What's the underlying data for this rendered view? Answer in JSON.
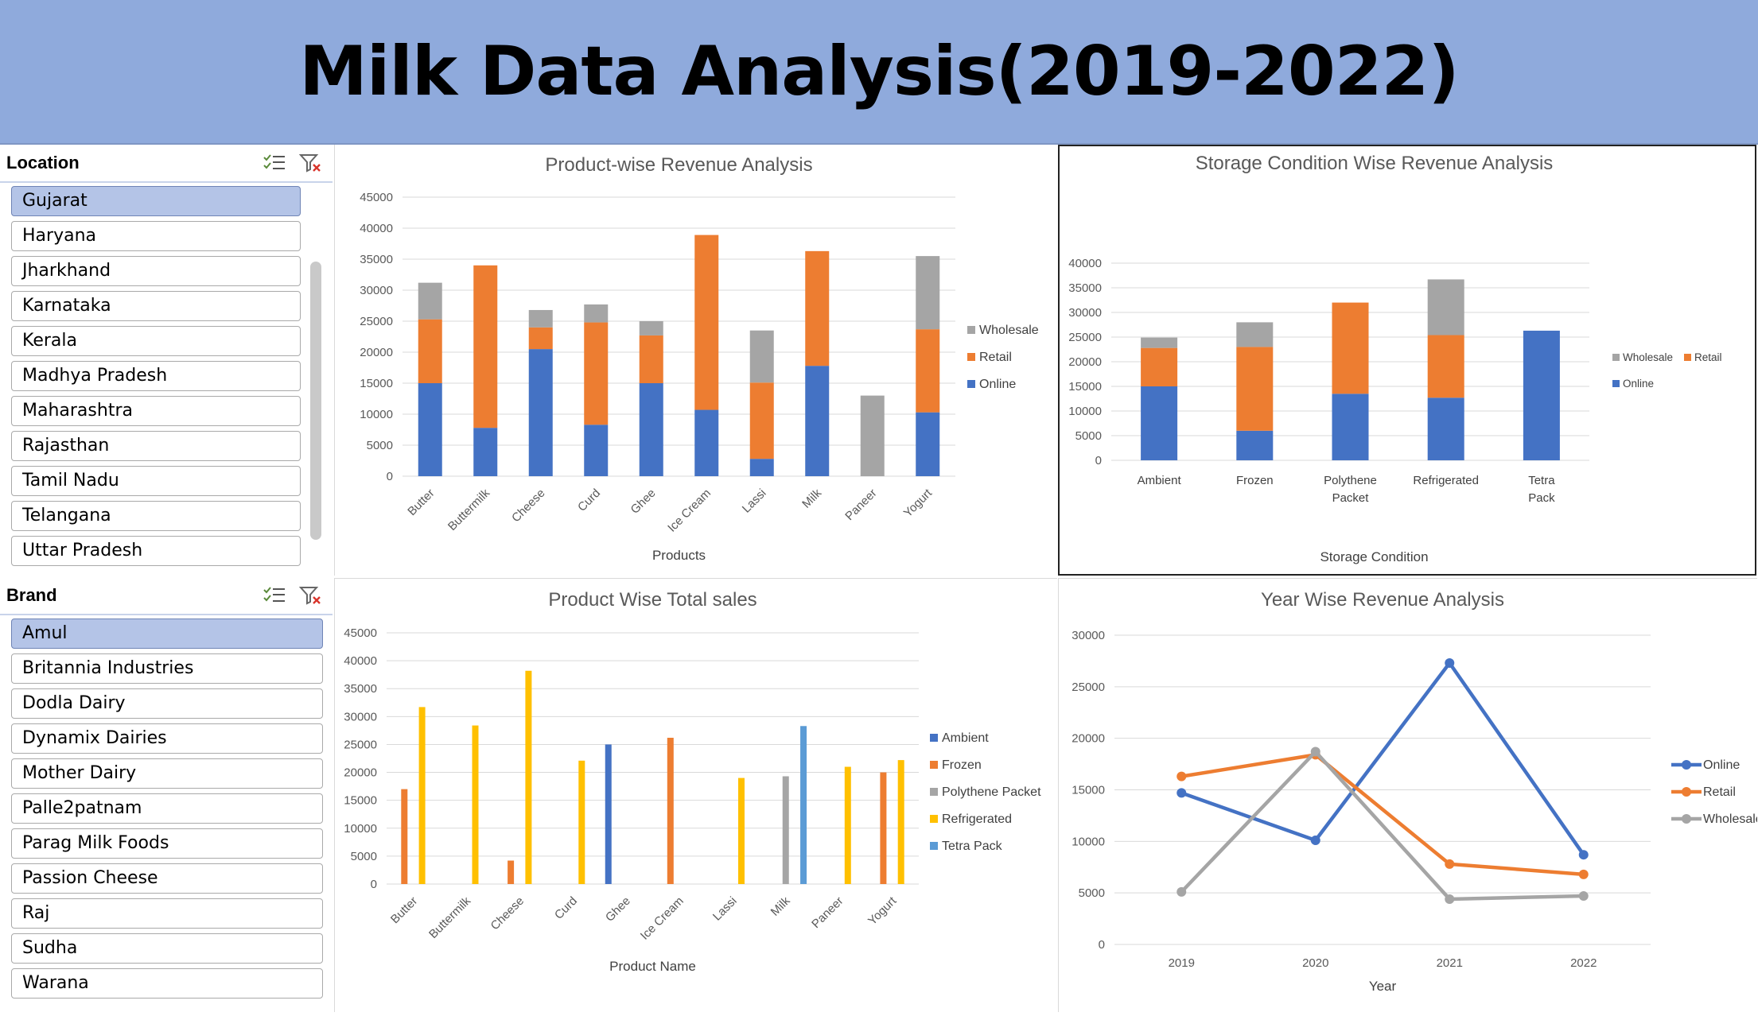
{
  "title": "Milk Data Analysis(2019-2022)",
  "slicers": {
    "location": {
      "label": "Location",
      "items": [
        "Gujarat",
        "Haryana",
        "Jharkhand",
        "Karnataka",
        "Kerala",
        "Madhya Pradesh",
        "Maharashtra",
        "Rajasthan",
        "Tamil Nadu",
        "Telangana",
        "Uttar Pradesh"
      ],
      "selected": "Gujarat"
    },
    "brand": {
      "label": "Brand",
      "items": [
        "Amul",
        "Britannia Industries",
        "Dodla Dairy",
        "Dynamix Dairies",
        "Mother Dairy",
        "Palle2patnam",
        "Parag Milk Foods",
        "Passion Cheese",
        "Raj",
        "Sudha",
        "Warana"
      ],
      "selected": "Amul"
    }
  },
  "icons": {
    "multi_select": "multi-select-icon",
    "clear_filter": "clear-filter-icon"
  },
  "colors": {
    "online": "#4472c4",
    "retail": "#ed7d31",
    "wholesale": "#a5a5a5",
    "refrigerated": "#ffc000",
    "tetra": "#5b9bd5",
    "header": "#8faadc"
  },
  "chart_data": [
    {
      "id": "product-revenue",
      "type": "bar",
      "stacked": true,
      "title": "Product-wise Revenue Analysis",
      "xlabel": "Products",
      "ylabel": "",
      "ylim": [
        0,
        45000
      ],
      "yticks": [
        0,
        5000,
        10000,
        15000,
        20000,
        25000,
        30000,
        35000,
        40000,
        45000
      ],
      "categories": [
        "Butter",
        "Buttermilk",
        "Cheese",
        "Curd",
        "Ghee",
        "Ice Cream",
        "Lassi",
        "Milk",
        "Paneer",
        "Yogurt"
      ],
      "series": [
        {
          "name": "Online",
          "values": [
            15000,
            7800,
            20500,
            8300,
            15000,
            10700,
            2800,
            17800,
            0,
            10300
          ]
        },
        {
          "name": "Retail",
          "values": [
            10300,
            26200,
            3500,
            16500,
            7700,
            28200,
            12300,
            18500,
            0,
            13400
          ]
        },
        {
          "name": "Wholesale",
          "values": [
            5900,
            0,
            2800,
            2900,
            2300,
            0,
            8400,
            0,
            13000,
            11800
          ]
        }
      ],
      "legend": "right"
    },
    {
      "id": "storage-revenue",
      "type": "bar",
      "stacked": true,
      "title": "Storage Condition Wise Revenue Analysis",
      "xlabel": "Storage Condition",
      "ylabel": "",
      "ylim": [
        0,
        40000
      ],
      "yticks": [
        0,
        5000,
        10000,
        15000,
        20000,
        25000,
        30000,
        35000,
        40000
      ],
      "categories": [
        "Ambient",
        "Frozen",
        "Polythene Packet",
        "Refrigerated",
        "Tetra Pack"
      ],
      "series": [
        {
          "name": "Online",
          "values": [
            15000,
            6000,
            13500,
            12700,
            26300
          ]
        },
        {
          "name": "Retail",
          "values": [
            7800,
            17000,
            18500,
            12700,
            0
          ]
        },
        {
          "name": "Wholesale",
          "values": [
            2100,
            5000,
            0,
            11300,
            0
          ]
        }
      ],
      "legend": "right"
    },
    {
      "id": "product-total-sales",
      "type": "bar",
      "stacked": false,
      "title": "Product Wise Total sales",
      "xlabel": "Product Name",
      "ylabel": "",
      "ylim": [
        0,
        45000
      ],
      "yticks": [
        0,
        5000,
        10000,
        15000,
        20000,
        25000,
        30000,
        35000,
        40000,
        45000
      ],
      "categories": [
        "Butter",
        "Buttermilk",
        "Cheese",
        "Curd",
        "Ghee",
        "Ice Cream",
        "Lassi",
        "Milk",
        "Paneer",
        "Yogurt"
      ],
      "series": [
        {
          "name": "Ambient",
          "values": [
            null,
            null,
            null,
            null,
            25000,
            null,
            null,
            null,
            null,
            null
          ]
        },
        {
          "name": "Frozen",
          "values": [
            17000,
            null,
            4200,
            null,
            null,
            26200,
            null,
            null,
            null,
            20000
          ]
        },
        {
          "name": "Polythene Packet",
          "values": [
            null,
            null,
            null,
            null,
            null,
            null,
            null,
            19300,
            null,
            null
          ]
        },
        {
          "name": "Refrigerated",
          "values": [
            31700,
            28400,
            38200,
            22100,
            null,
            null,
            19000,
            null,
            21000,
            22200
          ]
        },
        {
          "name": "Tetra Pack",
          "values": [
            null,
            null,
            null,
            null,
            null,
            null,
            null,
            28300,
            null,
            null
          ]
        }
      ],
      "legend": "right"
    },
    {
      "id": "year-revenue",
      "type": "line",
      "title": "Year Wise Revenue Analysis",
      "xlabel": "Year",
      "ylabel": "",
      "ylim": [
        0,
        30000
      ],
      "yticks": [
        0,
        5000,
        10000,
        15000,
        20000,
        25000,
        30000
      ],
      "categories": [
        "2019",
        "2020",
        "2021",
        "2022"
      ],
      "series": [
        {
          "name": "Online",
          "values": [
            14700,
            10100,
            27300,
            8700
          ]
        },
        {
          "name": "Retail",
          "values": [
            16300,
            18400,
            7800,
            6800
          ]
        },
        {
          "name": "Wholesale",
          "values": [
            5100,
            18700,
            4400,
            4700
          ]
        }
      ],
      "legend": "right"
    }
  ]
}
